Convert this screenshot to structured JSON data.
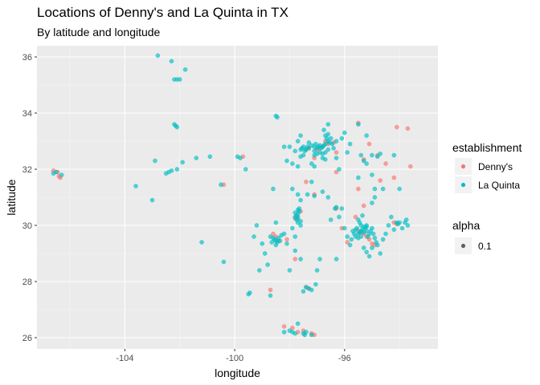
{
  "chart_data": {
    "type": "scatter",
    "title": "Locations of Denny's and La Quinta in TX",
    "subtitle": "By latitude and longitude",
    "xlabel": "longitude",
    "ylabel": "latitude",
    "xlim": [
      -107.2,
      -92.6
    ],
    "ylim": [
      25.6,
      36.4
    ],
    "x_ticks": [
      -104,
      -100,
      -96
    ],
    "y_ticks": [
      26,
      28,
      30,
      32,
      34,
      36
    ],
    "x_tick_labels": [
      "-104",
      "-100",
      "-96"
    ],
    "y_tick_labels": [
      "26",
      "28",
      "30",
      "32",
      "34",
      "36"
    ],
    "grid": true,
    "legend_position": "right",
    "legend": {
      "color_title": "establishment",
      "alpha_title": "alpha",
      "alpha_label": "0.1"
    },
    "series": [
      {
        "name": "Denny's",
        "color": "#F8766D",
        "points": [
          [
            -106.6,
            31.95
          ],
          [
            -106.45,
            31.9
          ],
          [
            -106.35,
            31.7
          ],
          [
            -106.4,
            31.75
          ],
          [
            -97.9,
            26.35
          ],
          [
            -97.7,
            26.2
          ],
          [
            -97.5,
            26.25
          ],
          [
            -97.2,
            26.15
          ],
          [
            -97.1,
            26.1
          ],
          [
            -98.2,
            26.4
          ],
          [
            -98.7,
            27.7
          ],
          [
            -97.4,
            27.8
          ],
          [
            -97.3,
            27.75
          ],
          [
            -98.1,
            29.5
          ],
          [
            -98.4,
            29.45
          ],
          [
            -98.5,
            29.6
          ],
          [
            -97.7,
            30.3
          ],
          [
            -97.8,
            30.25
          ],
          [
            -97.6,
            30.5
          ],
          [
            -96.3,
            30.6
          ],
          [
            -96.1,
            29.9
          ],
          [
            -95.9,
            29.4
          ],
          [
            -95.3,
            29.7
          ],
          [
            -95.5,
            29.8
          ],
          [
            -95.4,
            29.75
          ],
          [
            -95.2,
            29.6
          ],
          [
            -95.1,
            29.5
          ],
          [
            -95.0,
            29.35
          ],
          [
            -94.9,
            29.3
          ],
          [
            -94.2,
            30.1
          ],
          [
            -94.1,
            30.05
          ],
          [
            -95.6,
            30.3
          ],
          [
            -95.3,
            30.7
          ],
          [
            -95.5,
            31.3
          ],
          [
            -94.7,
            31.6
          ],
          [
            -94.2,
            31.7
          ],
          [
            -93.6,
            32.1
          ],
          [
            -94.5,
            32.2
          ],
          [
            -94.8,
            32.5
          ],
          [
            -95.3,
            32.35
          ],
          [
            -95.1,
            32.9
          ],
          [
            -93.7,
            33.45
          ],
          [
            -94.1,
            33.5
          ],
          [
            -95.5,
            33.65
          ],
          [
            -96.7,
            33.0
          ],
          [
            -96.8,
            32.8
          ],
          [
            -96.9,
            32.75
          ],
          [
            -97.0,
            32.7
          ],
          [
            -97.3,
            32.75
          ],
          [
            -97.4,
            32.7
          ],
          [
            -96.6,
            32.9
          ],
          [
            -96.4,
            32.95
          ],
          [
            -96.3,
            32.6
          ],
          [
            -97.1,
            32.4
          ],
          [
            -97.4,
            31.55
          ],
          [
            -97.1,
            31.1
          ],
          [
            -96.3,
            31.9
          ],
          [
            -99.7,
            32.45
          ],
          [
            -100.4,
            31.45
          ],
          [
            -98.6,
            29.7
          ],
          [
            -97.8,
            28.8
          ]
        ]
      },
      {
        "name": "La Quinta",
        "color": "#00BFC4",
        "points": [
          [
            -106.5,
            31.9
          ],
          [
            -106.3,
            31.8
          ],
          [
            -106.6,
            31.85
          ],
          [
            -102.8,
            36.05
          ],
          [
            -102.3,
            35.85
          ],
          [
            -101.8,
            35.55
          ],
          [
            -102.2,
            35.2
          ],
          [
            -102.1,
            35.2
          ],
          [
            -102.0,
            35.2
          ],
          [
            -102.2,
            33.6
          ],
          [
            -102.15,
            33.55
          ],
          [
            -102.1,
            33.5
          ],
          [
            -98.5,
            33.9
          ],
          [
            -98.45,
            33.85
          ],
          [
            -101.9,
            32.25
          ],
          [
            -102.1,
            32.0
          ],
          [
            -102.3,
            31.95
          ],
          [
            -102.5,
            31.85
          ],
          [
            -102.4,
            31.9
          ],
          [
            -103.6,
            31.4
          ],
          [
            -103.0,
            30.9
          ],
          [
            -102.9,
            32.3
          ],
          [
            -101.4,
            32.4
          ],
          [
            -100.9,
            32.45
          ],
          [
            -100.5,
            31.45
          ],
          [
            -100.4,
            28.7
          ],
          [
            -99.9,
            32.45
          ],
          [
            -99.8,
            32.4
          ],
          [
            -99.6,
            32.0
          ],
          [
            -101.2,
            29.4
          ],
          [
            -99.2,
            30.0
          ],
          [
            -99.5,
            27.55
          ],
          [
            -99.45,
            27.6
          ],
          [
            -98.7,
            27.5
          ],
          [
            -98.2,
            26.2
          ],
          [
            -98.0,
            26.25
          ],
          [
            -97.9,
            26.2
          ],
          [
            -97.5,
            26.15
          ],
          [
            -97.45,
            26.1
          ],
          [
            -97.7,
            26.5
          ],
          [
            -97.2,
            26.1
          ],
          [
            -97.4,
            26.2
          ],
          [
            -97.8,
            26.15
          ],
          [
            -98.5,
            29.45
          ],
          [
            -98.55,
            29.5
          ],
          [
            -98.45,
            29.4
          ],
          [
            -98.6,
            29.55
          ],
          [
            -98.4,
            29.55
          ],
          [
            -98.35,
            29.45
          ],
          [
            -98.5,
            29.3
          ],
          [
            -98.7,
            29.6
          ],
          [
            -98.3,
            29.65
          ],
          [
            -98.2,
            29.7
          ],
          [
            -98.65,
            29.4
          ],
          [
            -98.1,
            29.35
          ],
          [
            -97.8,
            30.3
          ],
          [
            -97.75,
            30.35
          ],
          [
            -97.7,
            30.4
          ],
          [
            -97.7,
            30.25
          ],
          [
            -97.75,
            30.2
          ],
          [
            -97.65,
            30.5
          ],
          [
            -97.8,
            30.45
          ],
          [
            -97.7,
            30.1
          ],
          [
            -97.6,
            30.0
          ],
          [
            -97.9,
            29.9
          ],
          [
            -97.8,
            29.6
          ],
          [
            -97.7,
            30.55
          ],
          [
            -97.65,
            30.6
          ],
          [
            -97.6,
            30.15
          ],
          [
            -97.8,
            29.1
          ],
          [
            -97.6,
            28.8
          ],
          [
            -97.4,
            27.8
          ],
          [
            -97.3,
            27.75
          ],
          [
            -97.5,
            27.65
          ],
          [
            -97.2,
            27.7
          ],
          [
            -97.05,
            27.9
          ],
          [
            -97.0,
            28.4
          ],
          [
            -96.9,
            28.8
          ],
          [
            -98.0,
            28.4
          ],
          [
            -98.8,
            28.6
          ],
          [
            -99.1,
            28.4
          ],
          [
            -98.9,
            29.0
          ],
          [
            -99.0,
            29.35
          ],
          [
            -99.3,
            29.6
          ],
          [
            -97.1,
            31.05
          ],
          [
            -97.2,
            31.55
          ],
          [
            -97.35,
            31.1
          ],
          [
            -97.9,
            31.3
          ],
          [
            -97.7,
            31.1
          ],
          [
            -97.6,
            30.9
          ],
          [
            -96.35,
            30.6
          ],
          [
            -96.3,
            30.65
          ],
          [
            -96.5,
            30.2
          ],
          [
            -96.2,
            30.3
          ],
          [
            -98.5,
            30.1
          ],
          [
            -98.6,
            31.3
          ],
          [
            -97.1,
            32.1
          ],
          [
            -97.2,
            32.2
          ],
          [
            -97.5,
            32.5
          ],
          [
            -97.6,
            32.45
          ],
          [
            -96.8,
            31.2
          ],
          [
            -96.6,
            31.0
          ],
          [
            -96.8,
            32.8
          ],
          [
            -96.85,
            32.75
          ],
          [
            -96.75,
            32.85
          ],
          [
            -96.7,
            32.9
          ],
          [
            -96.9,
            32.85
          ],
          [
            -96.95,
            32.8
          ],
          [
            -97.0,
            32.75
          ],
          [
            -97.05,
            32.9
          ],
          [
            -97.1,
            32.8
          ],
          [
            -97.2,
            32.85
          ],
          [
            -97.3,
            32.75
          ],
          [
            -97.35,
            32.8
          ],
          [
            -97.4,
            32.7
          ],
          [
            -97.45,
            32.65
          ],
          [
            -97.5,
            32.8
          ],
          [
            -97.55,
            32.75
          ],
          [
            -97.6,
            32.7
          ],
          [
            -97.1,
            32.65
          ],
          [
            -96.6,
            33.0
          ],
          [
            -96.65,
            33.1
          ],
          [
            -96.7,
            33.2
          ],
          [
            -96.5,
            33.1
          ],
          [
            -96.55,
            32.95
          ],
          [
            -96.45,
            32.9
          ],
          [
            -96.4,
            32.75
          ],
          [
            -96.3,
            33.0
          ],
          [
            -96.6,
            32.7
          ],
          [
            -96.7,
            32.6
          ],
          [
            -96.8,
            32.55
          ],
          [
            -96.9,
            32.6
          ],
          [
            -97.0,
            32.55
          ],
          [
            -97.1,
            32.5
          ],
          [
            -96.8,
            32.4
          ],
          [
            -96.7,
            32.35
          ],
          [
            -96.6,
            33.25
          ],
          [
            -96.75,
            33.4
          ],
          [
            -96.6,
            33.6
          ],
          [
            -97.3,
            32.95
          ],
          [
            -97.7,
            33.0
          ],
          [
            -97.8,
            32.65
          ],
          [
            -97.9,
            32.2
          ],
          [
            -97.7,
            32.1
          ],
          [
            -98.2,
            32.8
          ],
          [
            -98.0,
            32.8
          ],
          [
            -98.1,
            32.3
          ],
          [
            -97.6,
            33.2
          ],
          [
            -96.1,
            33.1
          ],
          [
            -96.3,
            32.4
          ],
          [
            -96.2,
            32.0
          ],
          [
            -95.9,
            32.6
          ],
          [
            -95.8,
            32.9
          ],
          [
            -96.0,
            33.3
          ],
          [
            -95.5,
            33.6
          ],
          [
            -95.2,
            33.2
          ],
          [
            -95.4,
            32.5
          ],
          [
            -95.3,
            32.3
          ],
          [
            -95.2,
            32.2
          ],
          [
            -95.0,
            32.5
          ],
          [
            -94.8,
            32.45
          ],
          [
            -94.7,
            32.55
          ],
          [
            -94.2,
            32.5
          ],
          [
            -94.9,
            31.3
          ],
          [
            -95.0,
            31.8
          ],
          [
            -94.6,
            31.3
          ],
          [
            -94.9,
            31.0
          ],
          [
            -95.5,
            31.7
          ],
          [
            -95.4,
            29.8
          ],
          [
            -95.45,
            29.75
          ],
          [
            -95.5,
            29.7
          ],
          [
            -95.3,
            29.75
          ],
          [
            -95.35,
            29.85
          ],
          [
            -95.2,
            29.8
          ],
          [
            -95.55,
            29.9
          ],
          [
            -95.6,
            29.85
          ],
          [
            -95.25,
            29.9
          ],
          [
            -95.1,
            29.7
          ],
          [
            -95.15,
            29.6
          ],
          [
            -95.4,
            29.6
          ],
          [
            -95.5,
            29.55
          ],
          [
            -95.6,
            29.6
          ],
          [
            -95.65,
            29.7
          ],
          [
            -95.7,
            29.8
          ],
          [
            -95.3,
            29.95
          ],
          [
            -95.4,
            30.0
          ],
          [
            -95.45,
            30.1
          ],
          [
            -95.5,
            30.2
          ],
          [
            -95.35,
            30.35
          ],
          [
            -95.2,
            30.0
          ],
          [
            -95.0,
            29.9
          ],
          [
            -95.05,
            29.8
          ],
          [
            -94.95,
            29.7
          ],
          [
            -94.9,
            29.55
          ],
          [
            -94.85,
            29.4
          ],
          [
            -94.8,
            29.3
          ],
          [
            -95.0,
            29.2
          ],
          [
            -95.2,
            29.05
          ],
          [
            -95.3,
            29.2
          ],
          [
            -95.8,
            29.3
          ],
          [
            -95.9,
            29.6
          ],
          [
            -95.75,
            29.5
          ],
          [
            -96.0,
            29.9
          ],
          [
            -95.2,
            29.95
          ],
          [
            -94.1,
            30.1
          ],
          [
            -94.05,
            30.05
          ],
          [
            -94.0,
            30.1
          ],
          [
            -93.8,
            30.1
          ],
          [
            -93.7,
            30.0
          ],
          [
            -93.75,
            30.2
          ],
          [
            -93.9,
            29.9
          ],
          [
            -94.2,
            29.85
          ],
          [
            -94.3,
            30.3
          ],
          [
            -94.4,
            30.0
          ],
          [
            -94.5,
            29.7
          ],
          [
            -94.6,
            29.5
          ],
          [
            -94.7,
            29.0
          ],
          [
            -95.1,
            28.9
          ],
          [
            -96.3,
            28.8
          ],
          [
            -96.1,
            30.6
          ],
          [
            -95.0,
            30.8
          ],
          [
            -94.0,
            31.3
          ]
        ]
      }
    ]
  }
}
